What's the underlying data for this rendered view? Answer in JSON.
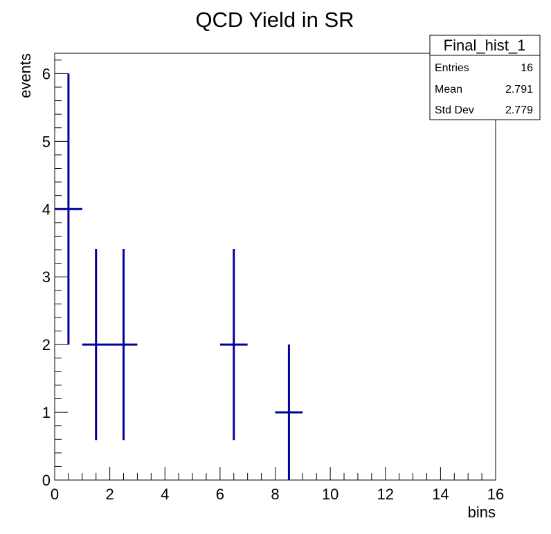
{
  "chart_data": {
    "type": "histogram",
    "title": "QCD Yield in SR",
    "xlabel": "bins",
    "ylabel": "events",
    "xlim": [
      0,
      16
    ],
    "ylim": [
      0,
      6.3
    ],
    "xticks": [
      "0",
      "2",
      "4",
      "6",
      "8",
      "10",
      "12",
      "14",
      "16"
    ],
    "yticks": [
      "0",
      "1",
      "2",
      "3",
      "4",
      "5",
      "6"
    ],
    "series": [
      {
        "color": "#000099",
        "points": [
          {
            "x": 0.5,
            "xlo": 0,
            "xhi": 1,
            "y": 4,
            "ylo": 2,
            "yhi": 6
          },
          {
            "x": 1.5,
            "xlo": 1,
            "xhi": 2,
            "y": 2,
            "ylo": 0.59,
            "yhi": 3.41
          },
          {
            "x": 2.5,
            "xlo": 2,
            "xhi": 3,
            "y": 2,
            "ylo": 0.59,
            "yhi": 3.41
          },
          {
            "x": 6.5,
            "xlo": 6,
            "xhi": 7,
            "y": 2,
            "ylo": 0.59,
            "yhi": 3.41
          },
          {
            "x": 8.5,
            "xlo": 8,
            "xhi": 9,
            "y": 1,
            "ylo": 0,
            "yhi": 2
          }
        ]
      }
    ],
    "stats": {
      "name": "Final_hist_1",
      "rows": [
        {
          "label": "Entries",
          "value": "16"
        },
        {
          "label": "Mean",
          "value": "2.791"
        },
        {
          "label": "Std Dev",
          "value": "2.779"
        }
      ]
    }
  }
}
